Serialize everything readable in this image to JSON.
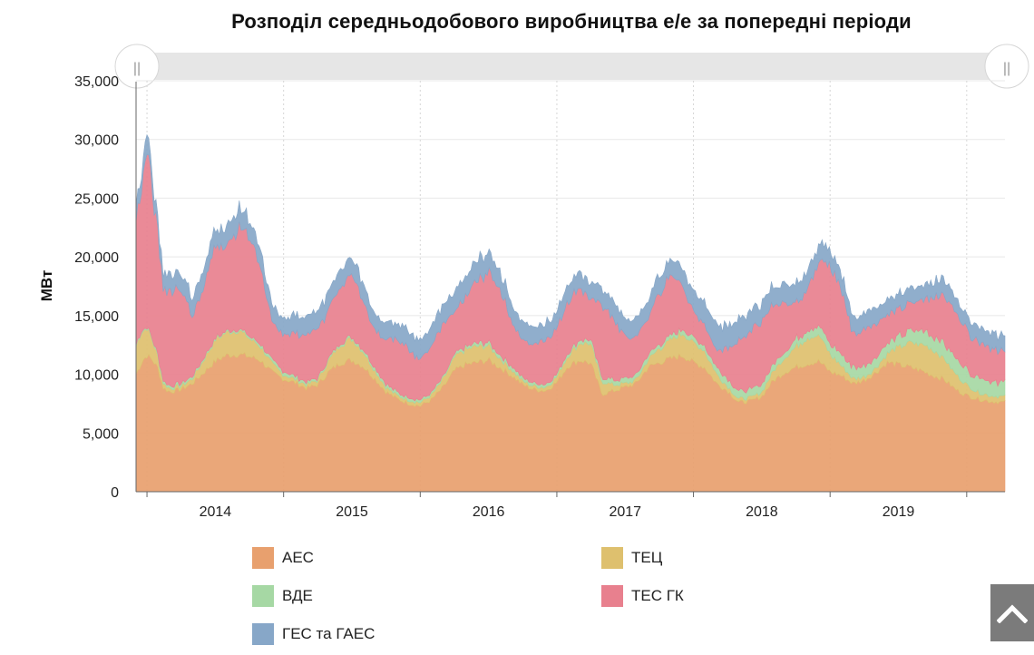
{
  "chart_data": {
    "type": "area",
    "stacked": true,
    "title": "Розподіл середньодобового виробництва е/е за попередні періоди",
    "ylabel": "МВт",
    "xlabel": "",
    "ylim": [
      0,
      35000
    ],
    "yticks": [
      "0",
      "5,000",
      "10,000",
      "15,000",
      "20,000",
      "25,000",
      "30,000",
      "35,000"
    ],
    "x": [
      2013.92,
      2013.97,
      2014.0,
      2014.04,
      2014.08,
      2014.12,
      2014.17,
      2014.25,
      2014.33,
      2014.42,
      2014.5,
      2014.58,
      2014.67,
      2014.75,
      2014.83,
      2014.92,
      2015.0,
      2015.08,
      2015.17,
      2015.25,
      2015.33,
      2015.42,
      2015.5,
      2015.58,
      2015.67,
      2015.75,
      2015.83,
      2015.92,
      2016.0,
      2016.08,
      2016.17,
      2016.25,
      2016.33,
      2016.42,
      2016.5,
      2016.58,
      2016.67,
      2016.75,
      2016.83,
      2016.92,
      2017.0,
      2017.08,
      2017.17,
      2017.25,
      2017.33,
      2017.42,
      2017.5,
      2017.58,
      2017.67,
      2017.75,
      2017.83,
      2017.92,
      2018.0,
      2018.08,
      2018.17,
      2018.25,
      2018.33,
      2018.42,
      2018.5,
      2018.58,
      2018.67,
      2018.75,
      2018.83,
      2018.92,
      2019.0,
      2019.08,
      2019.17,
      2019.25,
      2019.33,
      2019.42,
      2019.5,
      2019.58,
      2019.67,
      2019.75,
      2019.83,
      2019.92,
      2020.0,
      2020.08,
      2020.17,
      2020.28
    ],
    "xticks": [
      "2014",
      "2015",
      "2016",
      "2017",
      "2018",
      "2019"
    ],
    "series": [
      {
        "name": "АЕС",
        "color": "#e8a06e",
        "values": [
          10000,
          11200,
          11600,
          11200,
          10500,
          8800,
          8500,
          8700,
          9200,
          10200,
          11100,
          11600,
          11700,
          11500,
          11200,
          10100,
          9600,
          9300,
          8800,
          9100,
          10200,
          11000,
          11200,
          10700,
          9600,
          8500,
          7900,
          7500,
          7300,
          7800,
          8900,
          10300,
          10800,
          11000,
          11200,
          10600,
          9900,
          9100,
          8700,
          8600,
          9300,
          10700,
          11200,
          10900,
          8300,
          8600,
          8900,
          9200,
          10600,
          11000,
          11300,
          11600,
          11000,
          10600,
          9200,
          8600,
          7600,
          7700,
          8100,
          9400,
          10200,
          10600,
          10900,
          11100,
          10200,
          9900,
          9200,
          9500,
          10100,
          11000,
          10800,
          10600,
          10300,
          9900,
          9600,
          8700,
          8200,
          7900,
          7700,
          7600
        ]
      },
      {
        "name": "ТЕЦ",
        "color": "#dec06e",
        "values": [
          2400,
          2600,
          2400,
          1600,
          900,
          400,
          300,
          300,
          400,
          1100,
          1800,
          2000,
          2100,
          1600,
          1200,
          700,
          400,
          300,
          300,
          400,
          1000,
          1600,
          1800,
          1300,
          700,
          400,
          300,
          300,
          300,
          400,
          700,
          1100,
          1300,
          1400,
          1200,
          800,
          500,
          300,
          300,
          300,
          500,
          900,
          1500,
          1700,
          1100,
          500,
          300,
          300,
          700,
          1200,
          1600,
          1900,
          1700,
          1400,
          800,
          400,
          300,
          300,
          400,
          800,
          1300,
          1800,
          2200,
          2200,
          1500,
          900,
          400,
          300,
          400,
          800,
          1500,
          2100,
          2300,
          2200,
          1800,
          1300,
          900,
          600,
          500,
          500
        ]
      },
      {
        "name": "ВДЕ",
        "color": "#a6d8a4",
        "values": [
          120,
          120,
          130,
          150,
          200,
          250,
          250,
          220,
          180,
          150,
          130,
          130,
          150,
          180,
          230,
          270,
          280,
          250,
          220,
          180,
          160,
          160,
          180,
          230,
          270,
          290,
          280,
          260,
          230,
          200,
          190,
          200,
          230,
          270,
          300,
          320,
          310,
          290,
          270,
          250,
          240,
          250,
          280,
          330,
          380,
          420,
          440,
          420,
          390,
          360,
          350,
          370,
          420,
          480,
          560,
          640,
          680,
          680,
          640,
          590,
          580,
          600,
          680,
          780,
          880,
          950,
          990,
          970,
          930,
          910,
          930,
          1000,
          1100,
          1200,
          1250,
          1300,
          1300,
          1280,
          1250,
          1230
        ]
      },
      {
        "name": "ТЕС ГК",
        "color": "#e8808e",
        "values": [
          10600,
          12800,
          15200,
          12400,
          10200,
          7900,
          8200,
          8100,
          5200,
          6000,
          8200,
          7100,
          8700,
          8600,
          6400,
          3000,
          3200,
          3500,
          4200,
          4200,
          4100,
          4800,
          5500,
          4100,
          3300,
          3800,
          4600,
          4100,
          3400,
          4000,
          4300,
          3600,
          4300,
          5400,
          6100,
          5700,
          3800,
          3100,
          3400,
          3900,
          4000,
          4400,
          4500,
          3300,
          6100,
          5200,
          3500,
          3300,
          3200,
          4500,
          5200,
          3800,
          2200,
          1900,
          1400,
          2700,
          4300,
          5000,
          5500,
          5100,
          4200,
          2900,
          3700,
          5400,
          6800,
          5500,
          2800,
          3100,
          2900,
          2400,
          2300,
          2300,
          2600,
          3300,
          3900,
          4000,
          3500,
          3000,
          2900,
          2500
        ]
      },
      {
        "name": "ГЕС та ГАЕС",
        "color": "#87a7c8",
        "values": [
          1200,
          1500,
          1500,
          1300,
          1200,
          1300,
          1400,
          1500,
          1500,
          1500,
          1500,
          1600,
          1600,
          1500,
          1400,
          1400,
          1400,
          1500,
          1500,
          1500,
          1500,
          1500,
          1500,
          1500,
          1400,
          1400,
          1400,
          1500,
          1600,
          1700,
          1700,
          1700,
          1700,
          1700,
          1600,
          1600,
          1500,
          1500,
          1500,
          1500,
          1400,
          1400,
          1400,
          1400,
          1400,
          1500,
          1500,
          1500,
          1500,
          1500,
          1500,
          1500,
          1700,
          1900,
          2100,
          1900,
          1800,
          1700,
          1600,
          1600,
          1600,
          1600,
          1500,
          1500,
          1400,
          1400,
          1400,
          1400,
          1300,
          1300,
          1300,
          1300,
          1300,
          1300,
          1300,
          1300,
          1300,
          1300,
          1300,
          1300
        ]
      }
    ]
  },
  "navigator": {
    "left_handle_icon": "||",
    "right_handle_icon": "||"
  },
  "scroll_top_icon": "chevron-up-icon"
}
